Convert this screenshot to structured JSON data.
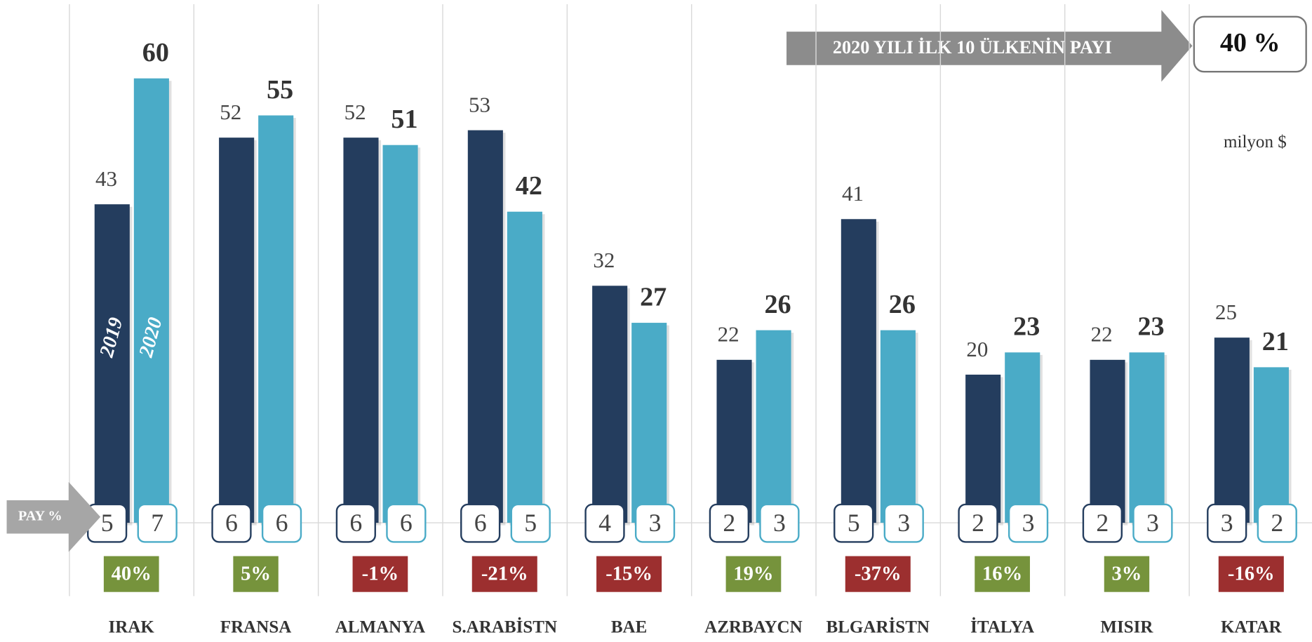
{
  "chart_data": {
    "type": "bar",
    "categories": [
      "IRAK",
      "FRANSA",
      "ALMANYA",
      "S.ARABİSTN",
      "BAE",
      "AZRBAYCN",
      "BLGARİSTN",
      "İTALYA",
      "MISIR",
      "KATAR"
    ],
    "series": [
      {
        "name": "2019",
        "color": "#243d5e",
        "values": [
          43,
          52,
          52,
          53,
          32,
          22,
          41,
          20,
          22,
          25
        ],
        "share": [
          5,
          6,
          6,
          6,
          4,
          2,
          5,
          2,
          2,
          3
        ]
      },
      {
        "name": "2020",
        "color": "#4aabc7",
        "values": [
          60,
          55,
          51,
          42,
          27,
          26,
          26,
          23,
          23,
          21
        ],
        "share": [
          7,
          6,
          6,
          5,
          3,
          3,
          3,
          3,
          3,
          2
        ]
      }
    ],
    "change": {
      "values": [
        40,
        5,
        -1,
        -21,
        -15,
        19,
        -37,
        16,
        3,
        -16
      ],
      "value_labels": [
        "40%",
        "5%",
        "-1%",
        "-21%",
        "-15%",
        "19%",
        "-37%",
        "16%",
        "3%",
        "-16%"
      ],
      "positive_color": "#76933c",
      "negative_color": "#9c2f2f"
    },
    "share_label": "PAY %",
    "headline": {
      "text": "2020 YILI İLK 10 ÜLKENİN PAYI",
      "value": 40,
      "label": "40 %"
    },
    "unit": "milyon $",
    "ylim": [
      0,
      60
    ]
  }
}
